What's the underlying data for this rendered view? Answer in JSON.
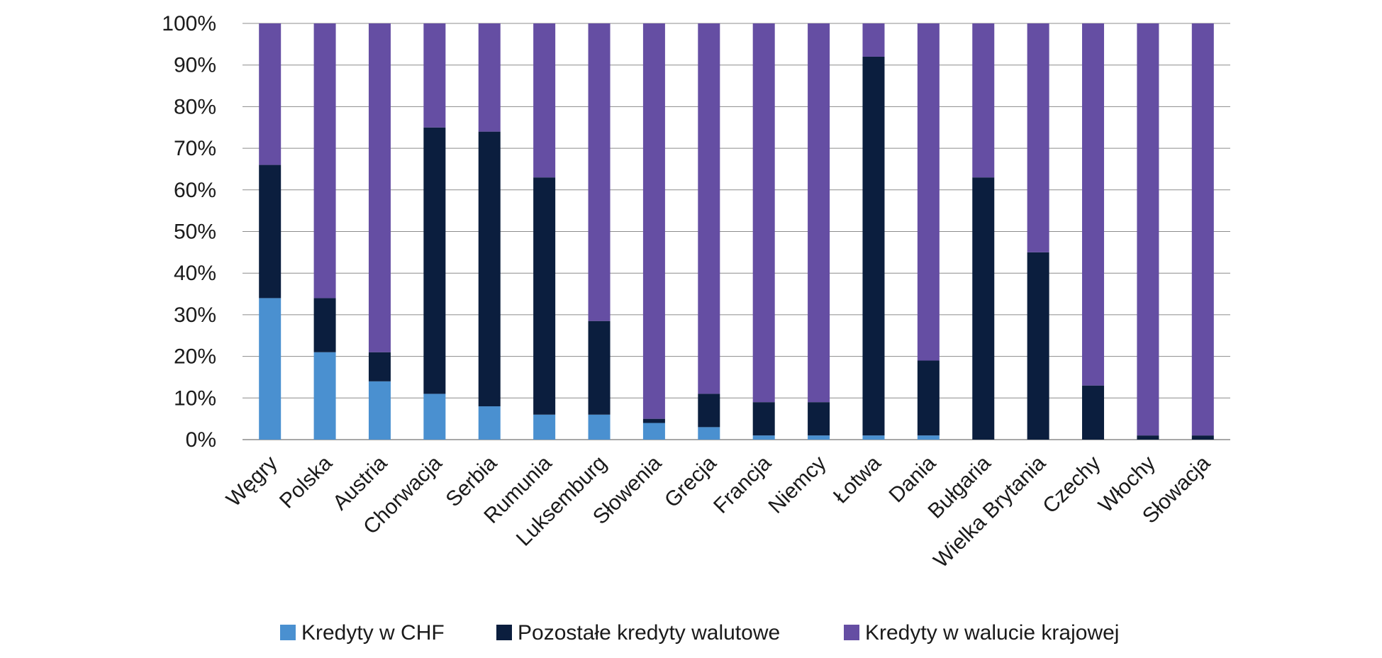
{
  "chart_data": {
    "type": "bar",
    "stacked": true,
    "percent": true,
    "categories": [
      "Węgry",
      "Polska",
      "Austria",
      "Chorwacja",
      "Serbia",
      "Rumunia",
      "Luksemburg",
      "Słowenia",
      "Grecja",
      "Francja",
      "Niemcy",
      "Łotwa",
      "Dania",
      "Bułgaria",
      "Wielka Brytania",
      "Czechy",
      "Włochy",
      "Słowacja"
    ],
    "series": [
      {
        "name": "Kredyty w CHF",
        "color": "#4a90d0",
        "values": [
          34,
          21,
          14,
          11,
          8,
          6,
          6,
          4,
          3,
          1,
          1,
          1,
          1,
          0,
          0,
          0,
          0,
          0
        ]
      },
      {
        "name": "Pozostałe kredyty walutowe",
        "color": "#0b1e3e",
        "values": [
          32,
          13,
          7,
          64,
          66,
          57,
          22.5,
          1,
          8,
          8,
          8,
          91,
          18,
          63,
          45,
          13,
          1,
          1
        ]
      },
      {
        "name": "Kredyty w walucie krajowej",
        "color": "#654ea3",
        "values": [
          34,
          66,
          79,
          25,
          26,
          37,
          71.5,
          95,
          89,
          91,
          91,
          8,
          81,
          37,
          55,
          87,
          99,
          99
        ]
      }
    ],
    "yticks": [
      "0%",
      "10%",
      "20%",
      "30%",
      "40%",
      "50%",
      "60%",
      "70%",
      "80%",
      "90%",
      "100%"
    ],
    "ylim": [
      0,
      100
    ],
    "grid": true,
    "legend_position": "bottom"
  }
}
